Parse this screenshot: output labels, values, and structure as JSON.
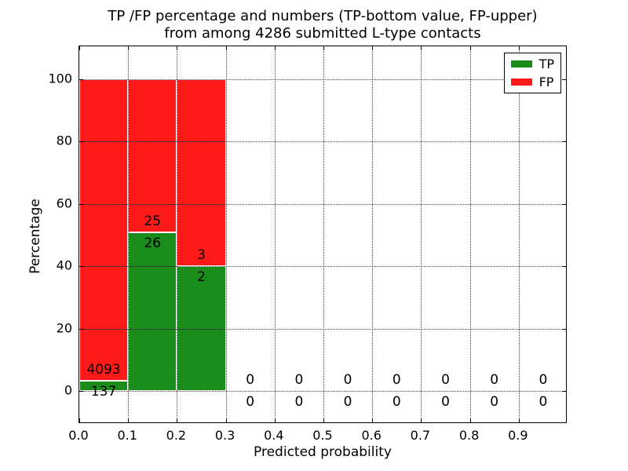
{
  "chart_data": {
    "type": "bar",
    "title_line1": "TP /FP percentage and numbers (TP-bottom value, FP-upper)",
    "title_line2": "from among 4286 submitted L-type contacts",
    "xlabel": "Predicted probability",
    "ylabel": "Percentage",
    "total_contacts": 4286,
    "stacked": true,
    "grid": "dotted",
    "legend_position": "upper-right",
    "xlim": [
      0.0,
      1.0
    ],
    "ylim": [
      -10.5,
      110.5
    ],
    "x_ticks": [
      "0.0",
      "0.1",
      "0.2",
      "0.3",
      "0.4",
      "0.5",
      "0.6",
      "0.7",
      "0.8",
      "0.9"
    ],
    "y_ticks": [
      "0",
      "20",
      "40",
      "60",
      "80",
      "100"
    ],
    "colors": {
      "tp": "#1a8c1a",
      "fp": "#ff1a1a"
    },
    "legend": [
      {
        "label": "TP",
        "color": "#1a8c1a"
      },
      {
        "label": "FP",
        "color": "#ff1a1a"
      }
    ],
    "bin_width": 0.1,
    "bins": [
      {
        "x_start": 0.0,
        "x_end": 0.1,
        "tp_count": "137",
        "fp_count": "4093",
        "tp_pct": 3.24,
        "fp_pct": 96.76,
        "has_bar": true
      },
      {
        "x_start": 0.1,
        "x_end": 0.2,
        "tp_count": "26",
        "fp_count": "25",
        "tp_pct": 50.98,
        "fp_pct": 49.02,
        "has_bar": true
      },
      {
        "x_start": 0.2,
        "x_end": 0.3,
        "tp_count": "2",
        "fp_count": "3",
        "tp_pct": 40.0,
        "fp_pct": 60.0,
        "has_bar": true
      },
      {
        "x_start": 0.3,
        "x_end": 0.4,
        "tp_count": "0",
        "fp_count": "0",
        "tp_pct": 0,
        "fp_pct": 0,
        "has_bar": false
      },
      {
        "x_start": 0.4,
        "x_end": 0.5,
        "tp_count": "0",
        "fp_count": "0",
        "tp_pct": 0,
        "fp_pct": 0,
        "has_bar": false
      },
      {
        "x_start": 0.5,
        "x_end": 0.6,
        "tp_count": "0",
        "fp_count": "0",
        "tp_pct": 0,
        "fp_pct": 0,
        "has_bar": false
      },
      {
        "x_start": 0.6,
        "x_end": 0.7,
        "tp_count": "0",
        "fp_count": "0",
        "tp_pct": 0,
        "fp_pct": 0,
        "has_bar": false
      },
      {
        "x_start": 0.7,
        "x_end": 0.8,
        "tp_count": "0",
        "fp_count": "0",
        "tp_pct": 0,
        "fp_pct": 0,
        "has_bar": false
      },
      {
        "x_start": 0.8,
        "x_end": 0.9,
        "tp_count": "0",
        "fp_count": "0",
        "tp_pct": 0,
        "fp_pct": 0,
        "has_bar": false
      },
      {
        "x_start": 0.9,
        "x_end": 1.0,
        "tp_count": "0",
        "fp_count": "0",
        "tp_pct": 0,
        "fp_pct": 0,
        "has_bar": false
      }
    ]
  }
}
